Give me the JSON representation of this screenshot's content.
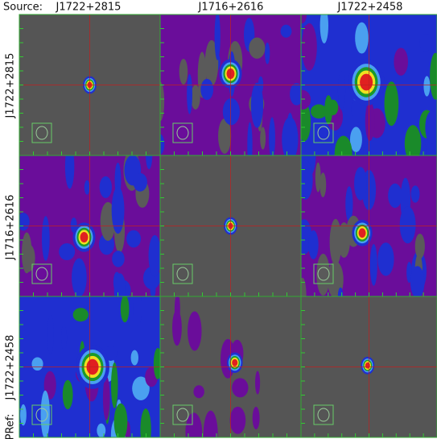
{
  "header": {
    "label": "Source:",
    "columns": [
      "J1722+2815",
      "J1716+2616",
      "J1722+2458"
    ]
  },
  "rows": [
    "J1722+2815",
    "J1716+2616",
    "J1722+2458"
  ],
  "pref_label": "PRef:"
}
